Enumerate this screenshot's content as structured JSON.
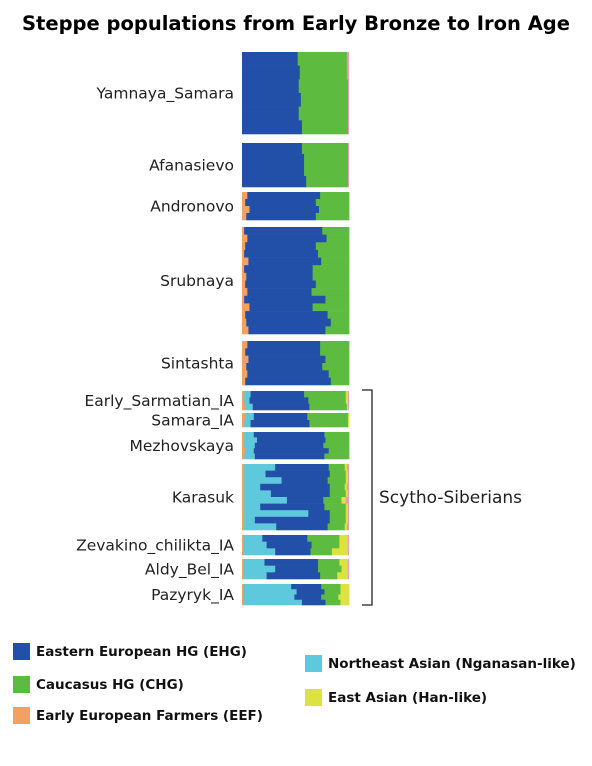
{
  "title": "Steppe populations from Early Bronze to Iron Age",
  "colors": {
    "EHG": "#2250a8",
    "CHG": "#5dbb3f",
    "EEF": "#f2a163",
    "NEA": "#5ec8dc",
    "EA": "#dde23e",
    "minor_pink": "#e69bbb",
    "minor_brown": "#b7602c"
  },
  "chart_data": {
    "type": "bar",
    "orientation": "horizontal-stacked",
    "components": [
      "EEF",
      "NEA",
      "EHG",
      "CHG",
      "EA"
    ],
    "groups": [
      {
        "name": "Yamnaya_Samara",
        "rows": [
          [
            0,
            0,
            0.52,
            0.46,
            0
          ],
          [
            0,
            0,
            0.54,
            0.44,
            0
          ],
          [
            0,
            0,
            0.53,
            0.46,
            0
          ],
          [
            0,
            0,
            0.55,
            0.44,
            0
          ],
          [
            0,
            0,
            0.53,
            0.46,
            0
          ],
          [
            0,
            0,
            0.56,
            0.43,
            0
          ]
        ]
      },
      {
        "name": "Afanasievo",
        "rows": [
          [
            0,
            0,
            0.56,
            0.43,
            0
          ],
          [
            0,
            0,
            0.58,
            0.41,
            0
          ],
          [
            0,
            0,
            0.58,
            0.41,
            0
          ],
          [
            0,
            0,
            0.6,
            0.39,
            0
          ]
        ]
      },
      {
        "name": "Andronovo",
        "rows": [
          [
            0.05,
            0,
            0.68,
            0.27,
            0
          ],
          [
            0.03,
            0,
            0.66,
            0.31,
            0
          ],
          [
            0.07,
            0,
            0.65,
            0.28,
            0
          ],
          [
            0.04,
            0,
            0.65,
            0.31,
            0
          ]
        ]
      },
      {
        "name": "Srubnaya",
        "rows": [
          [
            0.02,
            0,
            0.73,
            0.25,
            0
          ],
          [
            0.05,
            0,
            0.74,
            0.21,
            0
          ],
          [
            0.03,
            0,
            0.66,
            0.31,
            0
          ],
          [
            0.02,
            0,
            0.69,
            0.29,
            0
          ],
          [
            0.06,
            0,
            0.68,
            0.26,
            0
          ],
          [
            0.02,
            0,
            0.64,
            0.34,
            0
          ],
          [
            0.04,
            0,
            0.62,
            0.34,
            0
          ],
          [
            0.03,
            0,
            0.66,
            0.31,
            0
          ],
          [
            0.05,
            0,
            0.6,
            0.35,
            0
          ],
          [
            0.02,
            0,
            0.76,
            0.22,
            0
          ],
          [
            0.07,
            0,
            0.59,
            0.34,
            0
          ],
          [
            0.03,
            0,
            0.77,
            0.2,
            0
          ],
          [
            0.04,
            0,
            0.79,
            0.17,
            0
          ],
          [
            0.06,
            0,
            0.72,
            0.22,
            0
          ]
        ]
      },
      {
        "name": "Sintashta",
        "rows": [
          [
            0.05,
            0,
            0.68,
            0.27,
            0
          ],
          [
            0.03,
            0,
            0.7,
            0.27,
            0
          ],
          [
            0.06,
            0,
            0.72,
            0.22,
            0
          ],
          [
            0.04,
            0,
            0.71,
            0.25,
            0
          ],
          [
            0.05,
            0,
            0.76,
            0.19,
            0
          ],
          [
            0.03,
            0,
            0.8,
            0.17,
            0
          ]
        ]
      },
      {
        "name": "Early_Sarmatian_IA",
        "rows": [
          [
            0.02,
            0.06,
            0.5,
            0.39,
            0.02
          ],
          [
            0.02,
            0.05,
            0.55,
            0.35,
            0.02
          ],
          [
            0.03,
            0.07,
            0.53,
            0.35,
            0.01
          ]
        ]
      },
      {
        "name": "Samara_IA",
        "rows": [
          [
            0.03,
            0.08,
            0.5,
            0.38,
            0.01
          ],
          [
            0.02,
            0.06,
            0.55,
            0.36,
            0.01
          ]
        ]
      },
      {
        "name": "Mezhovskaya",
        "rows": [
          [
            0.02,
            0.09,
            0.66,
            0.23,
            0
          ],
          [
            0.02,
            0.12,
            0.64,
            0.22,
            0
          ],
          [
            0.02,
            0.1,
            0.64,
            0.24,
            0
          ],
          [
            0.03,
            0.08,
            0.7,
            0.19,
            0
          ],
          [
            0.02,
            0.1,
            0.65,
            0.23,
            0
          ]
        ]
      },
      {
        "name": "Karasuk",
        "rows": [
          [
            0.02,
            0.29,
            0.5,
            0.15,
            0.02
          ],
          [
            0.02,
            0.2,
            0.6,
            0.15,
            0.02
          ],
          [
            0.02,
            0.35,
            0.43,
            0.17,
            0.02
          ],
          [
            0.02,
            0.15,
            0.65,
            0.14,
            0.02
          ],
          [
            0.02,
            0.25,
            0.55,
            0.15,
            0.02
          ],
          [
            0.02,
            0.4,
            0.34,
            0.17,
            0.04
          ],
          [
            0.02,
            0.15,
            0.6,
            0.2,
            0.02
          ],
          [
            0.02,
            0.6,
            0.2,
            0.15,
            0.02
          ],
          [
            0.02,
            0.1,
            0.7,
            0.15,
            0.02
          ],
          [
            0.02,
            0.3,
            0.48,
            0.16,
            0.02
          ]
        ]
      },
      {
        "name": "Zevakino_chilikta_IA",
        "rows": [
          [
            0.01,
            0.18,
            0.42,
            0.3,
            0.08
          ],
          [
            0.01,
            0.22,
            0.42,
            0.26,
            0.08
          ],
          [
            0.01,
            0.3,
            0.33,
            0.2,
            0.15
          ]
        ]
      },
      {
        "name": "Aldy_Bel_IA",
        "rows": [
          [
            0.01,
            0.2,
            0.5,
            0.2,
            0.08
          ],
          [
            0.01,
            0.3,
            0.4,
            0.22,
            0.06
          ],
          [
            0.01,
            0.22,
            0.5,
            0.16,
            0.1
          ]
        ]
      },
      {
        "name": "Pazyryk_IA",
        "rows": [
          [
            0.01,
            0.45,
            0.28,
            0.18,
            0.08
          ],
          [
            0.01,
            0.5,
            0.26,
            0.15,
            0.08
          ],
          [
            0.01,
            0.48,
            0.25,
            0.16,
            0.1
          ],
          [
            0.01,
            0.55,
            0.22,
            0.14,
            0.08
          ]
        ]
      }
    ],
    "bracket_label": "Scytho-Siberians",
    "legend": [
      {
        "key": "EHG",
        "label": "Eastern European HG (EHG)"
      },
      {
        "key": "CHG",
        "label": "Caucasus HG (CHG)"
      },
      {
        "key": "EEF",
        "label": "Early European Farmers (EEF)"
      },
      {
        "key": "NEA",
        "label": "Northeast Asian (Nganasan-like)"
      },
      {
        "key": "EA",
        "label": "East Asian (Han-like)"
      }
    ]
  }
}
